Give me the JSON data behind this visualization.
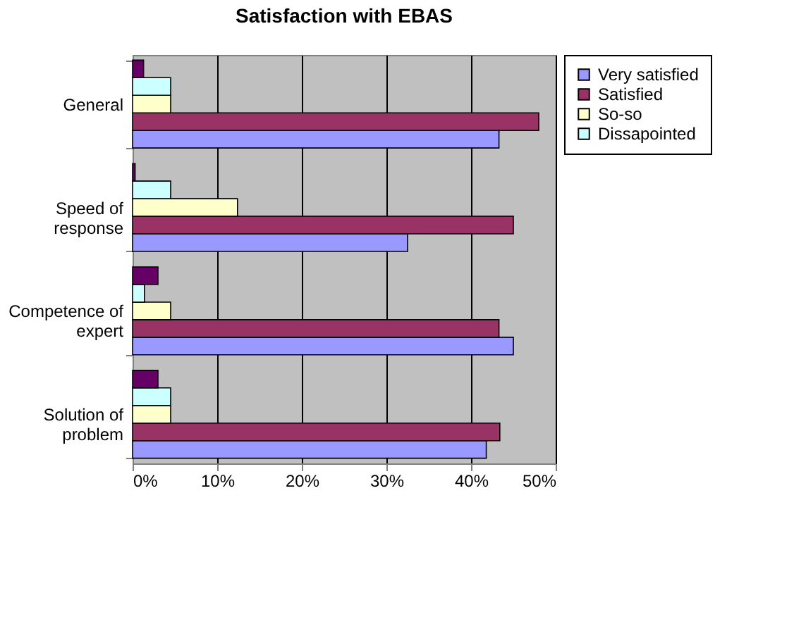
{
  "chart_data": {
    "type": "bar",
    "orientation": "horizontal",
    "title": "Satisfaction with EBAS",
    "categories": [
      "General",
      "Speed of\nresponse",
      "Competence of\nexpert",
      "Solution of\nproblem"
    ],
    "series": [
      {
        "name": "Very satisfied",
        "color": "#9999ff",
        "values": [
          43.3,
          32.5,
          45,
          41.8
        ]
      },
      {
        "name": "Satisfied",
        "color": "#993366",
        "values": [
          48,
          45,
          43.3,
          43.4
        ]
      },
      {
        "name": "So-so",
        "color": "#ffffcc",
        "values": [
          4.5,
          12.4,
          4.5,
          4.5
        ]
      },
      {
        "name": "Dissapointed",
        "color": "#ccffff",
        "values": [
          4.5,
          4.5,
          1.4,
          4.5
        ]
      },
      {
        "color": "#660066",
        "values": [
          1.3,
          0.3,
          3,
          3
        ]
      }
    ],
    "xlim": [
      0,
      50
    ],
    "xticks": [
      {
        "value": 0,
        "label": "0%"
      },
      {
        "value": 10,
        "label": "10%"
      },
      {
        "value": 20,
        "label": "20%"
      },
      {
        "value": 30,
        "label": "30%"
      },
      {
        "value": 40,
        "label": "40%"
      },
      {
        "value": 50,
        "label": "50%"
      }
    ],
    "grid": "x",
    "legend": "right"
  }
}
